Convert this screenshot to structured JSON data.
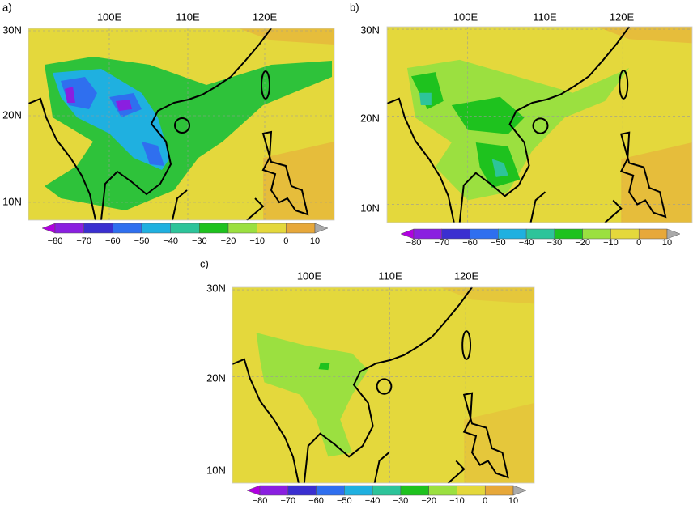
{
  "panels": [
    {
      "label": "a)",
      "lon_labels": [
        "100E",
        "110E",
        "120E"
      ],
      "lat_labels": [
        "30N",
        "20N",
        "10N"
      ],
      "colorbar_ticks": [
        "−80",
        "−70",
        "−60",
        "−50",
        "−40",
        "−30",
        "−20",
        "−10",
        "0",
        "10"
      ]
    },
    {
      "label": "b)",
      "lon_labels": [
        "100E",
        "110E",
        "120E"
      ],
      "lat_labels": [
        "30N",
        "20N",
        "10N"
      ],
      "colorbar_ticks": [
        "−80",
        "−70",
        "−60",
        "−50",
        "−40",
        "−30",
        "−20",
        "−10",
        "0",
        "10"
      ]
    },
    {
      "label": "c)",
      "lon_labels": [
        "100E",
        "110E",
        "120E"
      ],
      "lat_labels": [
        "30N",
        "20N",
        "10N"
      ],
      "colorbar_ticks": [
        "−80",
        "−70",
        "−60",
        "−50",
        "−40",
        "−30",
        "−20",
        "−10",
        "0",
        "10"
      ]
    }
  ]
}
